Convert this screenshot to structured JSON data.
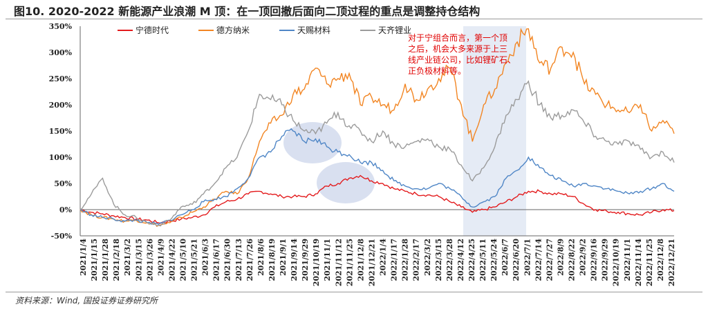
{
  "title": "图10. 2020-2022 新能源产业浪潮 M 顶：在一顶回撤后面向二顶过程的重点是调整持仓结构",
  "source": "资料来源：Wind, 国投证券证券研究所",
  "chart_data": {
    "type": "line",
    "title": "图10. 2020-2022 新能源产业浪潮 M 顶：在一顶回撤后面向二顶过程的重点是调整持仓结构",
    "ylabel": "",
    "xlabel": "",
    "ylim": [
      -50,
      350
    ],
    "yticks": [
      "350%",
      "300%",
      "250%",
      "200%",
      "150%",
      "100%",
      "50%",
      "0%",
      "-50%"
    ],
    "xtick_labels": [
      "2021/1/4",
      "2021/1/15",
      "2021/1/28",
      "2021/2/18",
      "2021/3/2",
      "2021/3/15",
      "2021/3/26",
      "2021/4/9",
      "2021/4/22",
      "2021/5/10",
      "2021/5/21",
      "2021/6/3",
      "2021/6/17",
      "2021/6/30",
      "2021/7/13",
      "2021/7/26",
      "2021/8/6",
      "2021/8/19",
      "2021/9/1",
      "2021/9/14",
      "2021/9/29",
      "2021/10/19",
      "2021/11/1",
      "2021/11/12",
      "2021/11/25",
      "2021/12/8",
      "2021/12/21",
      "2022/1/4",
      "2022/1/17",
      "2022/1/28",
      "2022/2/17",
      "2022/3/2",
      "2022/3/15",
      "2022/3/28",
      "2022/4/12",
      "2022/4/25",
      "2022/5/11",
      "2022/5/24",
      "2022/6/7",
      "2022/6/20",
      "2022/7/1",
      "2022/7/14",
      "2022/7/27",
      "2022/8/9",
      "2022/8/22",
      "2022/9/2",
      "2022/9/16",
      "2022/9/29",
      "2022/10/19",
      "2022/11/1",
      "2022/11/14",
      "2022/11/25",
      "2022/12/8",
      "2022/12/21"
    ],
    "grid": false,
    "legend_position": "top",
    "series": [
      {
        "name": "宁德时代",
        "color": "#e31a1c",
        "values": [
          0,
          -5,
          -8,
          -12,
          -15,
          -18,
          -20,
          -25,
          -22,
          -18,
          -15,
          -10,
          5,
          15,
          20,
          30,
          35,
          30,
          25,
          25,
          25,
          30,
          45,
          50,
          60,
          65,
          55,
          50,
          40,
          35,
          30,
          28,
          25,
          15,
          5,
          -5,
          0,
          5,
          15,
          25,
          35,
          35,
          30,
          30,
          25,
          10,
          0,
          -3,
          -5,
          -8,
          -10,
          -5,
          0,
          -2
        ]
      },
      {
        "name": "德方纳米",
        "color": "#f28522",
        "values": [
          0,
          -10,
          -15,
          -18,
          -22,
          -20,
          -25,
          -30,
          -25,
          -15,
          -5,
          5,
          20,
          35,
          30,
          60,
          130,
          165,
          180,
          220,
          230,
          270,
          240,
          250,
          260,
          200,
          215,
          200,
          190,
          240,
          210,
          230,
          250,
          270,
          200,
          130,
          200,
          230,
          280,
          320,
          345,
          280,
          270,
          310,
          300,
          240,
          220,
          200,
          190,
          185,
          200,
          150,
          170,
          145
        ]
      },
      {
        "name": "天赐材料",
        "color": "#4f86c6",
        "values": [
          0,
          -10,
          -15,
          -18,
          -22,
          -20,
          -25,
          -28,
          -20,
          -10,
          0,
          15,
          20,
          25,
          40,
          60,
          100,
          110,
          140,
          150,
          130,
          135,
          120,
          110,
          105,
          90,
          90,
          75,
          55,
          45,
          40,
          40,
          50,
          40,
          25,
          5,
          15,
          25,
          60,
          75,
          100,
          80,
          65,
          55,
          45,
          50,
          45,
          40,
          35,
          30,
          35,
          40,
          50,
          35
        ]
      },
      {
        "name": "天齐锂业",
        "color": "#9b9b9b",
        "values": [
          0,
          30,
          60,
          10,
          -10,
          -15,
          -25,
          -30,
          -20,
          5,
          10,
          30,
          50,
          80,
          100,
          150,
          220,
          210,
          200,
          170,
          150,
          145,
          165,
          185,
          160,
          150,
          130,
          150,
          125,
          120,
          130,
          135,
          120,
          115,
          85,
          55,
          80,
          120,
          180,
          210,
          245,
          200,
          175,
          180,
          190,
          165,
          140,
          130,
          125,
          130,
          115,
          100,
          110,
          90
        ]
      }
    ],
    "annotations": [
      "对于宁组合而言，第一个顶之后，机会大多来源于上三线产业链公司，比如锂矿石、正负极材料等。"
    ]
  },
  "note_lines": [
    "对于宁组合而言，第一个顶",
    "之后，机会大多来源于上三",
    "线产业链公司，比如锂矿石、",
    "正负极材料等。"
  ]
}
